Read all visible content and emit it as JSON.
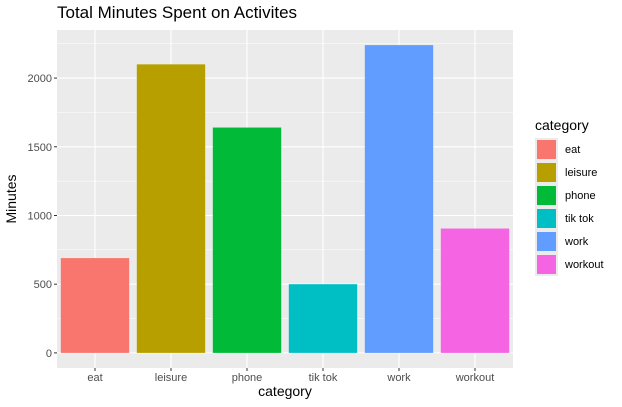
{
  "chart_data": {
    "type": "bar",
    "title": "Total Minutes Spent on Activites",
    "xlabel": "category",
    "ylabel": "Minutes",
    "categories": [
      "eat",
      "leisure",
      "phone",
      "tik tok",
      "work",
      "workout"
    ],
    "values": [
      690,
      2100,
      1640,
      500,
      2240,
      905
    ],
    "colors": [
      "#F8766D",
      "#B79F00",
      "#00BA38",
      "#00BFC4",
      "#619CFF",
      "#F564E3"
    ],
    "yticks": [
      0,
      500,
      1000,
      1500,
      2000
    ],
    "ylim": [
      -110,
      2350
    ],
    "grid": true,
    "panel_background": "#EBEBEB",
    "legend": {
      "title": "category",
      "position": "right",
      "entries": [
        "eat",
        "leisure",
        "phone",
        "tik tok",
        "work",
        "workout"
      ]
    }
  }
}
